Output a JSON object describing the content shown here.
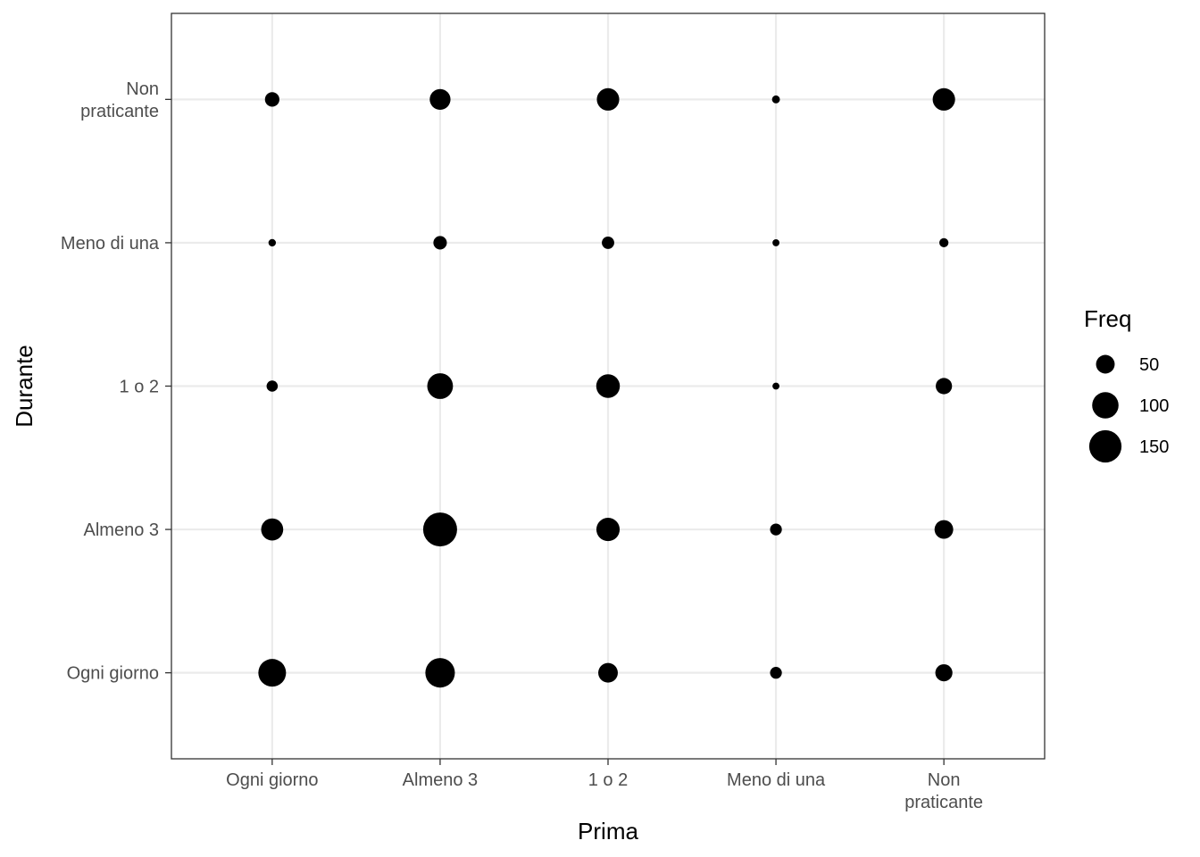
{
  "chart_data": {
    "type": "scatter",
    "xlabel": "Prima",
    "ylabel": "Durante",
    "x_categories": [
      [
        "Ogni giorno"
      ],
      [
        "Almeno 3"
      ],
      [
        "1 o 2"
      ],
      [
        "Meno di una"
      ],
      [
        "Non",
        "praticante"
      ]
    ],
    "y_categories": [
      [
        "Ogni giorno"
      ],
      [
        "Almeno 3"
      ],
      [
        "1 o 2"
      ],
      [
        "Meno di una"
      ],
      [
        "Non",
        "praticante"
      ]
    ],
    "points": [
      {
        "x": "Ogni giorno",
        "y": "Non praticante",
        "freq": 30
      },
      {
        "x": "Almeno 3",
        "y": "Non praticante",
        "freq": 62
      },
      {
        "x": "1 o 2",
        "y": "Non praticante",
        "freq": 72
      },
      {
        "x": "Meno di una",
        "y": "Non praticante",
        "freq": 9
      },
      {
        "x": "Non praticante",
        "y": "Non praticante",
        "freq": 72
      },
      {
        "x": "Ogni giorno",
        "y": "Meno di una",
        "freq": 8
      },
      {
        "x": "Almeno 3",
        "y": "Meno di una",
        "freq": 26
      },
      {
        "x": "1 o 2",
        "y": "Meno di una",
        "freq": 22
      },
      {
        "x": "Meno di una",
        "y": "Meno di una",
        "freq": 7
      },
      {
        "x": "Non praticante",
        "y": "Meno di una",
        "freq": 12
      },
      {
        "x": "Ogni giorno",
        "y": "1 o 2",
        "freq": 18
      },
      {
        "x": "Almeno 3",
        "y": "1 o 2",
        "freq": 95
      },
      {
        "x": "1 o 2",
        "y": "1 o 2",
        "freq": 80
      },
      {
        "x": "Meno di una",
        "y": "1 o 2",
        "freq": 7
      },
      {
        "x": "Non praticante",
        "y": "1 o 2",
        "freq": 38
      },
      {
        "x": "Ogni giorno",
        "y": "Almeno 3",
        "freq": 70
      },
      {
        "x": "Almeno 3",
        "y": "Almeno 3",
        "freq": 165
      },
      {
        "x": "1 o 2",
        "y": "Almeno 3",
        "freq": 78
      },
      {
        "x": "Meno di una",
        "y": "Almeno 3",
        "freq": 20
      },
      {
        "x": "Non praticante",
        "y": "Almeno 3",
        "freq": 50
      },
      {
        "x": "Ogni giorno",
        "y": "Ogni giorno",
        "freq": 110
      },
      {
        "x": "Almeno 3",
        "y": "Ogni giorno",
        "freq": 125
      },
      {
        "x": "1 o 2",
        "y": "Ogni giorno",
        "freq": 55
      },
      {
        "x": "Meno di una",
        "y": "Ogni giorno",
        "freq": 20
      },
      {
        "x": "Non praticante",
        "y": "Ogni giorno",
        "freq": 42
      }
    ],
    "size_legend": {
      "title": "Freq",
      "entries": [
        {
          "label": "50",
          "value": 50
        },
        {
          "label": "100",
          "value": 100
        },
        {
          "label": "150",
          "value": 150
        }
      ],
      "position": "right"
    },
    "grid": true,
    "colors": {
      "point": "#000000",
      "grid": "#ebebeb",
      "panel_border": "#333333",
      "tick_label": "#4d4d4d",
      "background": "#ffffff"
    }
  }
}
